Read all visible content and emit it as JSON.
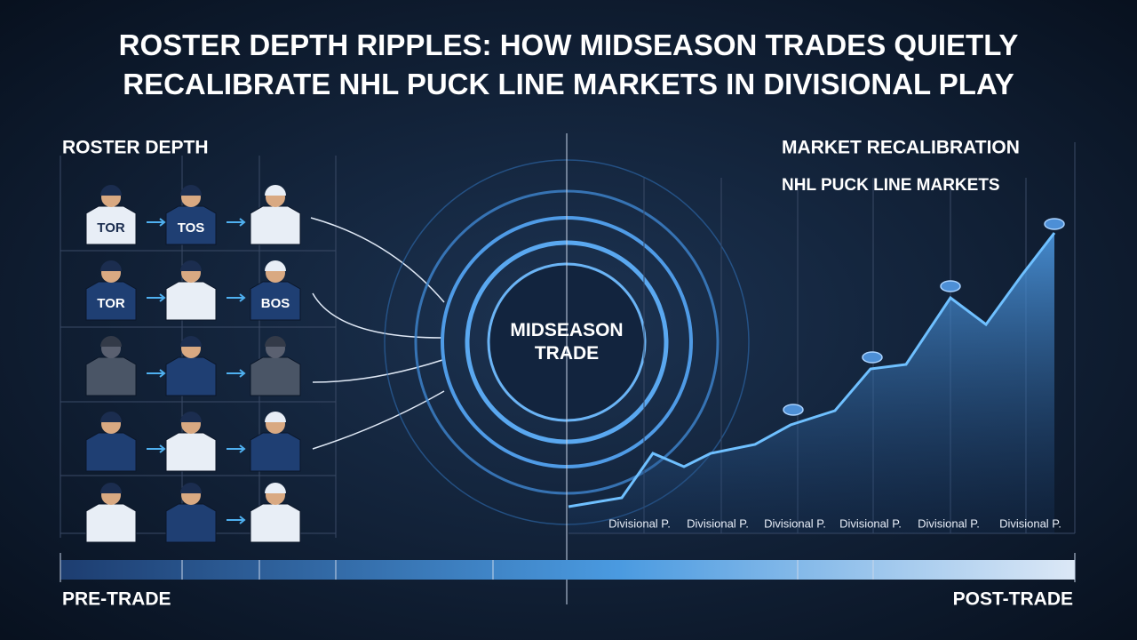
{
  "header": {
    "title": "ROSTER DEPTH RIPPLES: HOW MIDSEASON TRADES QUIETLY RECALIBRATE NHL PUCK LINE MARKETS IN DIVISIONAL PLAY"
  },
  "left_panel": {
    "title": "ROSTER DEPTH",
    "jersey_labels": [
      "TOR",
      "TOS",
      "TOR",
      "BOS"
    ]
  },
  "center": {
    "label": "MIDSEASON TRADE"
  },
  "right_panel": {
    "title": "MARKET RECALIBRATION",
    "subtitle": "NHL PUCK LINE MARKETS",
    "x_labels": [
      "Divisional P.",
      "Divisional P.",
      "Divisional P.",
      "Divisional P.",
      "Divisional P.",
      "Divisional P."
    ]
  },
  "timeline": {
    "start": "PRE-TRADE",
    "end": "POST-TRADE"
  }
}
